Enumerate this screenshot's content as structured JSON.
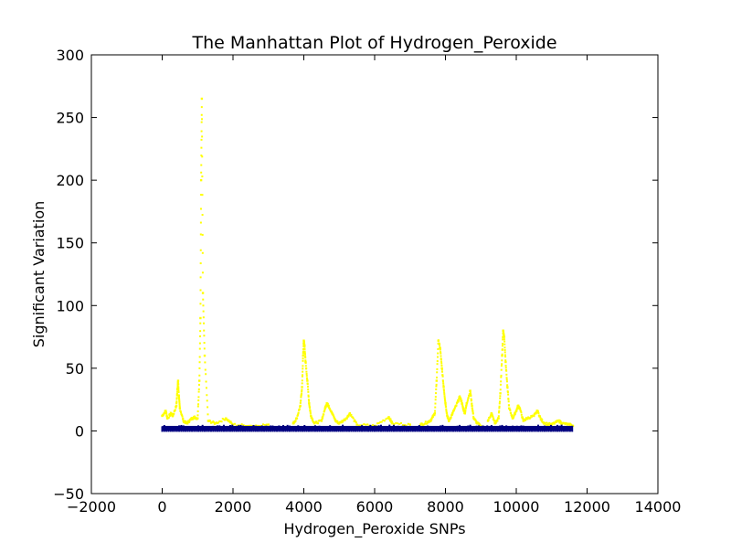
{
  "chart_data": {
    "type": "scatter",
    "title": "The Manhattan Plot of Hydrogen_Peroxide",
    "xlabel": "Hydrogen_Peroxide SNPs",
    "ylabel": "Significant Variation",
    "xlim": [
      -2000,
      14000
    ],
    "ylim": [
      -50,
      300
    ],
    "x_ticks": [
      "−2000",
      "0",
      "2000",
      "4000",
      "6000",
      "8000",
      "10000",
      "12000",
      "14000"
    ],
    "y_ticks": [
      "−50",
      "0",
      "50",
      "100",
      "150",
      "200",
      "250",
      "300"
    ],
    "grid": false,
    "colors": {
      "baseline": "#000080",
      "significant": "#ffff00"
    },
    "x_range_snps": [
      0,
      11600
    ],
    "baseline_band": [
      0,
      4
    ],
    "series": [
      {
        "x": [
          0,
          100,
          150,
          250,
          300,
          400,
          430,
          450,
          470,
          500,
          600,
          700,
          800,
          900,
          1000,
          1050,
          1080,
          1100,
          1120,
          1150,
          1200,
          1300,
          1500,
          1800,
          2000,
          2500,
          3000
        ],
        "values": [
          12,
          16,
          10,
          14,
          12,
          20,
          33,
          40,
          28,
          18,
          8,
          6,
          9,
          11,
          10,
          40,
          90,
          200,
          265,
          110,
          60,
          8,
          6,
          10,
          5,
          4,
          5
        ]
      },
      {
        "x": [
          3700,
          3800,
          3900,
          3950,
          3980,
          4000,
          4020,
          4050,
          4100,
          4150,
          4200,
          4300,
          4500,
          4600,
          4650,
          4700,
          4800,
          4900,
          5000,
          5200,
          5300,
          5500,
          6000,
          6400,
          6500,
          7000
        ],
        "values": [
          6,
          10,
          20,
          35,
          60,
          72,
          68,
          55,
          40,
          22,
          12,
          6,
          8,
          18,
          22,
          20,
          14,
          8,
          6,
          10,
          14,
          5,
          4,
          11,
          6,
          5
        ]
      },
      {
        "x": [
          7300,
          7500,
          7600,
          7700,
          7750,
          7800,
          7850,
          7900,
          7950,
          8000,
          8050,
          8100,
          8200,
          8300,
          8400,
          8450,
          8500,
          8550,
          8600,
          8700,
          8750,
          8800,
          8900,
          9000
        ],
        "values": [
          5,
          7,
          9,
          14,
          40,
          72,
          66,
          50,
          35,
          22,
          12,
          8,
          14,
          20,
          27,
          24,
          18,
          14,
          22,
          32,
          20,
          10,
          6,
          4
        ]
      },
      {
        "x": [
          9200,
          9300,
          9400,
          9500,
          9550,
          9600,
          9630,
          9660,
          9700,
          9750,
          9800,
          9900,
          10000,
          10050,
          10100,
          10200,
          10300,
          10500,
          10600,
          10700,
          10800,
          11000,
          11200,
          11300,
          11500,
          11600
        ],
        "values": [
          8,
          14,
          6,
          10,
          30,
          60,
          80,
          75,
          55,
          35,
          18,
          10,
          16,
          20,
          18,
          8,
          10,
          12,
          16,
          9,
          6,
          5,
          8,
          6,
          5,
          4
        ]
      }
    ]
  }
}
